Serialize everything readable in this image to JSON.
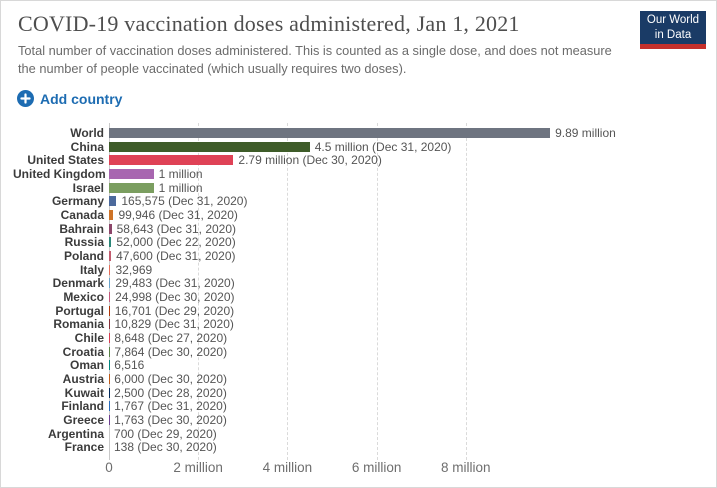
{
  "header": {
    "title": "COVID-19 vaccination doses administered, Jan 1, 2021",
    "subtitle_line1": "Total number of vaccination doses administered. This is counted as a single dose, and does not measure",
    "subtitle_line2": "the number of people vaccinated (which usually requires two doses).",
    "logo_line1": "Our World",
    "logo_line2": "in Data"
  },
  "controls": {
    "add_country_label": "Add country"
  },
  "colors": {
    "accent_blue": "#1d6cb2",
    "logo_navy": "#1a3b66",
    "logo_red": "#c5302b",
    "world_gray": "#6e7480"
  },
  "chart_data": {
    "type": "bar",
    "orientation": "horizontal",
    "title": "COVID-19 vaccination doses administered, Jan 1, 2021",
    "xlabel": "",
    "ylabel": "",
    "xlim_doses": [
      0,
      10000000
    ],
    "grid": "dashed-vertical",
    "x_ticks": [
      {
        "label": "0",
        "value_millions": 0
      },
      {
        "label": "2 million",
        "value_millions": 2
      },
      {
        "label": "4 million",
        "value_millions": 4
      },
      {
        "label": "6 million",
        "value_millions": 6
      },
      {
        "label": "8 million",
        "value_millions": 8
      }
    ],
    "rows": [
      {
        "entity": "World",
        "value": 9890000,
        "value_label": "9.89 million",
        "color": "#6e7480"
      },
      {
        "entity": "China",
        "value": 4500000,
        "value_label": "4.5 million (Dec 31, 2020)",
        "color": "#3e5c29"
      },
      {
        "entity": "United States",
        "value": 2790000,
        "value_label": "2.79 million (Dec 30, 2020)",
        "color": "#df4256"
      },
      {
        "entity": "United Kingdom",
        "value": 1000000,
        "value_label": "1 million",
        "color": "#a866b0"
      },
      {
        "entity": "Israel",
        "value": 1000000,
        "value_label": "1 million",
        "color": "#7b9e60"
      },
      {
        "entity": "Germany",
        "value": 165575,
        "value_label": "165,575 (Dec 31, 2020)",
        "color": "#4c6a9c"
      },
      {
        "entity": "Canada",
        "value": 99946,
        "value_label": "99,946 (Dec 31, 2020)",
        "color": "#ce7327"
      },
      {
        "entity": "Bahrain",
        "value": 58643,
        "value_label": "58,643 (Dec 31, 2020)",
        "color": "#8c4569"
      },
      {
        "entity": "Russia",
        "value": 52000,
        "value_label": "52,000 (Dec 22, 2020)",
        "color": "#2a8678"
      },
      {
        "entity": "Poland",
        "value": 47600,
        "value_label": "47,600 (Dec 31, 2020)",
        "color": "#c25b6e"
      },
      {
        "entity": "Italy",
        "value": 32969,
        "value_label": "32,969",
        "color": "#e56e5a"
      },
      {
        "entity": "Denmark",
        "value": 29483,
        "value_label": "29,483 (Dec 31, 2020)",
        "color": "#69a3c9"
      },
      {
        "entity": "Mexico",
        "value": 24998,
        "value_label": "24,998 (Dec 30, 2020)",
        "color": "#c4587a"
      },
      {
        "entity": "Portugal",
        "value": 16701,
        "value_label": "16,701 (Dec 29, 2020)",
        "color": "#b13507"
      },
      {
        "entity": "Romania",
        "value": 10829,
        "value_label": "10,829 (Dec 31, 2020)",
        "color": "#883039"
      },
      {
        "entity": "Chile",
        "value": 8648,
        "value_label": "8,648 (Dec 27, 2020)",
        "color": "#d73c50"
      },
      {
        "entity": "Croatia",
        "value": 7864,
        "value_label": "7,864 (Dec 30, 2020)",
        "color": "#578145"
      },
      {
        "entity": "Oman",
        "value": 6516,
        "value_label": "6,516",
        "color": "#00847e"
      },
      {
        "entity": "Austria",
        "value": 6000,
        "value_label": "6,000 (Dec 30, 2020)",
        "color": "#c05917"
      },
      {
        "entity": "Kuwait",
        "value": 2500,
        "value_label": "2,500 (Dec 28, 2020)",
        "color": "#00295b"
      },
      {
        "entity": "Finland",
        "value": 1767,
        "value_label": "1,767 (Dec 31, 2020)",
        "color": "#286bbb"
      },
      {
        "entity": "Greece",
        "value": 1763,
        "value_label": "1,763 (Dec 30, 2020)",
        "color": "#6d3e91"
      },
      {
        "entity": "Argentina",
        "value": 700,
        "value_label": "700 (Dec 29, 2020)",
        "color": "#38aaba"
      },
      {
        "entity": "France",
        "value": 138,
        "value_label": "138 (Dec 30, 2020)",
        "color": "#bc8e5a"
      }
    ]
  }
}
